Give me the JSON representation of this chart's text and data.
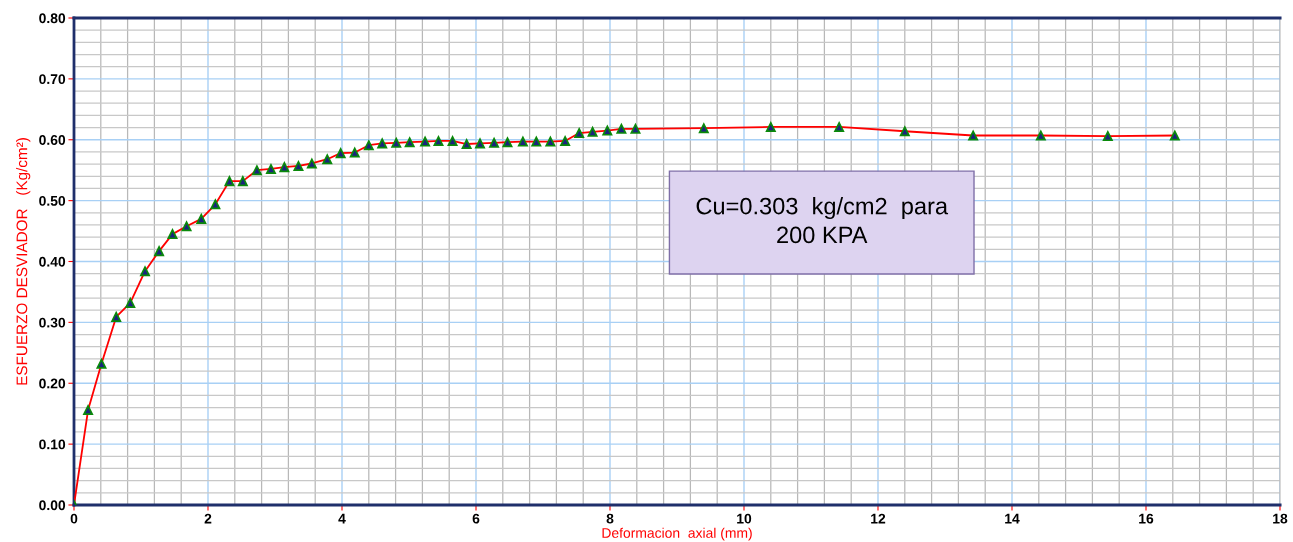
{
  "chart_data": {
    "type": "line",
    "xlabel": "Deformacion  axial (mm)",
    "ylabel": "ESFUERZO DESVIADOR   (Kg/cm²)",
    "xlim": [
      0,
      18
    ],
    "xticks": [
      0,
      2,
      4,
      6,
      8,
      10,
      12,
      14,
      16,
      18
    ],
    "ylim": [
      0,
      0.8
    ],
    "yticks": [
      {
        "value": 0,
        "label": "0.00"
      },
      {
        "value": 0.1,
        "label": "0.10"
      },
      {
        "value": 0.2,
        "label": "0.20"
      },
      {
        "value": 0.3,
        "label": "0.30"
      },
      {
        "value": 0.4,
        "label": "0.40"
      },
      {
        "value": 0.5,
        "label": "0.50"
      },
      {
        "value": 0.6,
        "label": "0.60"
      },
      {
        "value": 0.7,
        "label": "0.70"
      },
      {
        "value": 0.8,
        "label": "0.80"
      }
    ],
    "grid": true,
    "marker": "triangle",
    "line_style": "solid",
    "annotations": [
      "Cu=0.303  kg/cm2  para\n200 KPA"
    ],
    "series": [
      {
        "color": "#ff0000",
        "x": [
          0,
          0.21,
          0.41,
          0.63,
          0.84,
          1.06,
          1.27,
          1.47,
          1.68,
          1.9,
          2.11,
          2.32,
          2.52,
          2.73,
          2.94,
          3.14,
          3.35,
          3.55,
          3.78,
          3.98,
          4.19,
          4.4,
          4.6,
          4.81,
          5.01,
          5.24,
          5.44,
          5.65,
          5.86,
          6.06,
          6.27,
          6.47,
          6.7,
          6.9,
          7.11,
          7.33,
          7.54,
          7.74,
          7.96,
          8.17,
          8.38,
          9.4,
          10.4,
          11.42,
          12.4,
          13.42,
          14.43,
          15.43,
          16.43
        ],
        "values": [
          0,
          0.156,
          0.232,
          0.309,
          0.332,
          0.384,
          0.417,
          0.445,
          0.458,
          0.47,
          0.494,
          0.532,
          0.532,
          0.55,
          0.552,
          0.555,
          0.557,
          0.561,
          0.568,
          0.578,
          0.579,
          0.591,
          0.594,
          0.595,
          0.596,
          0.597,
          0.598,
          0.598,
          0.593,
          0.594,
          0.595,
          0.596,
          0.597,
          0.597,
          0.597,
          0.598,
          0.611,
          0.613,
          0.615,
          0.618,
          0.618,
          0.619,
          0.621,
          0.621,
          0.614,
          0.607,
          0.607,
          0.606,
          0.607
        ]
      }
    ]
  }
}
